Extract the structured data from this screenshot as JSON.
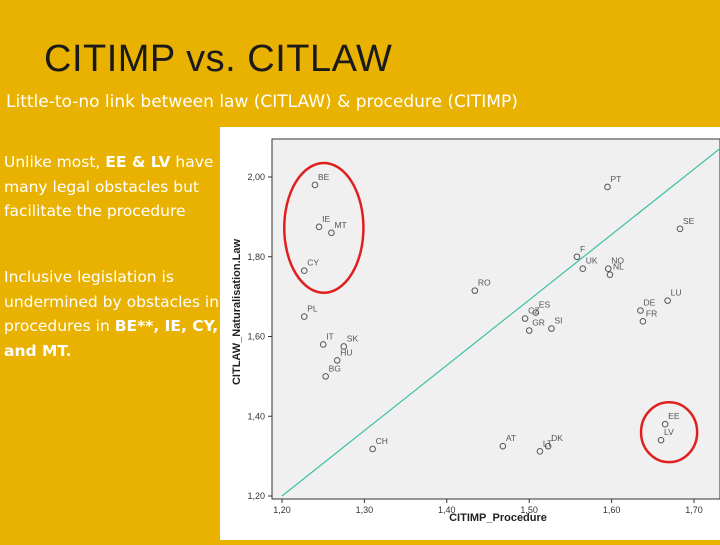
{
  "slide": {
    "title": "CITIMP vs. CITLAW",
    "subtitle": "Little-to-no link between law (CITLAW) & procedure (CITIMP)",
    "note1": {
      "prefix": "Unlike most, ",
      "bold": "EE & LV",
      "suffix": " have many legal obstacles but facilitate the procedure"
    },
    "note2": {
      "prefix": "Inclusive legislation is undermined by obstacles in procedures in ",
      "bold": "BE**, IE, CY, and MT."
    }
  },
  "colors": {
    "background": "#e9b200",
    "plot_area": "#f0f0f0",
    "diagonal_line": "#3fbfa6",
    "highlight_circle": "#e02020",
    "point_stroke": "#555555"
  },
  "chart_data": {
    "type": "scatter",
    "xlabel": "CITIMP_Procedure",
    "ylabel": "CITLAW_Naturalisation.Law",
    "xlim": [
      1.2,
      1.7
    ],
    "ylim": [
      1.2,
      2.0
    ],
    "x_ticks": [
      "1,20",
      "1,30",
      "1,40",
      "1,50",
      "1,60",
      "1,70"
    ],
    "y_ticks": [
      "1,20",
      "1,40",
      "1,60",
      "1,80",
      "2,00"
    ],
    "grid": false,
    "reference_line": {
      "from": [
        1.2,
        1.2
      ],
      "to": [
        1.7,
        2.0
      ]
    },
    "points": [
      {
        "label": "BE",
        "x": 1.24,
        "y": 1.98
      },
      {
        "label": "PT",
        "x": 1.595,
        "y": 1.975
      },
      {
        "label": "SE",
        "x": 1.683,
        "y": 1.87
      },
      {
        "label": "IE",
        "x": 1.245,
        "y": 1.875
      },
      {
        "label": "MT",
        "x": 1.26,
        "y": 1.86
      },
      {
        "label": "CY",
        "x": 1.227,
        "y": 1.765
      },
      {
        "label": "F",
        "x": 1.558,
        "y": 1.8
      },
      {
        "label": "UK",
        "x": 1.565,
        "y": 1.77
      },
      {
        "label": "NO",
        "x": 1.596,
        "y": 1.77
      },
      {
        "label": "NL",
        "x": 1.598,
        "y": 1.755
      },
      {
        "label": "RO",
        "x": 1.434,
        "y": 1.715
      },
      {
        "label": "LU",
        "x": 1.668,
        "y": 1.69
      },
      {
        "label": "DE",
        "x": 1.635,
        "y": 1.665
      },
      {
        "label": "FR",
        "x": 1.638,
        "y": 1.638
      },
      {
        "label": "ES",
        "x": 1.508,
        "y": 1.66
      },
      {
        "label": "CZ",
        "x": 1.495,
        "y": 1.645
      },
      {
        "label": "SI",
        "x": 1.527,
        "y": 1.62
      },
      {
        "label": "GR",
        "x": 1.5,
        "y": 1.615
      },
      {
        "label": "PL",
        "x": 1.227,
        "y": 1.65
      },
      {
        "label": "IT",
        "x": 1.25,
        "y": 1.58
      },
      {
        "label": "SK",
        "x": 1.275,
        "y": 1.575
      },
      {
        "label": "HU",
        "x": 1.267,
        "y": 1.54
      },
      {
        "label": "BG",
        "x": 1.253,
        "y": 1.5
      },
      {
        "label": "EE",
        "x": 1.665,
        "y": 1.38
      },
      {
        "label": "LV",
        "x": 1.66,
        "y": 1.34
      },
      {
        "label": "AT",
        "x": 1.468,
        "y": 1.325
      },
      {
        "label": "LT",
        "x": 1.513,
        "y": 1.312
      },
      {
        "label": "DK",
        "x": 1.523,
        "y": 1.325
      },
      {
        "label": "CH",
        "x": 1.31,
        "y": 1.318
      }
    ],
    "highlight_groups": [
      [
        "BE",
        "IE",
        "MT",
        "CY"
      ],
      [
        "EE",
        "LV"
      ]
    ]
  }
}
